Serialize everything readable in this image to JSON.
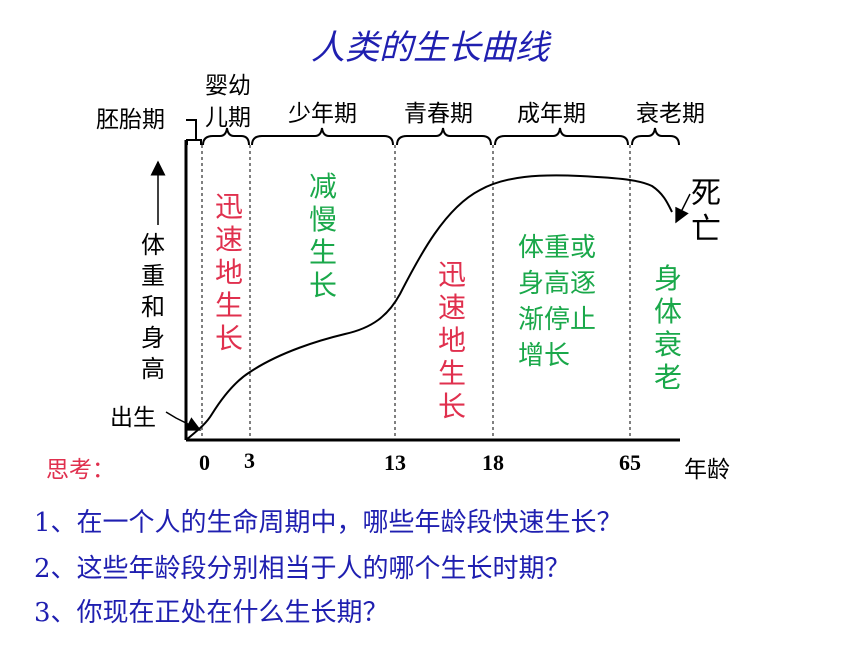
{
  "title": "人类的生长曲线",
  "stages": {
    "embryo": "胚胎期",
    "infant_line1": "婴幼",
    "infant_line2": "儿期",
    "youth": "少年期",
    "adolescence": "青春期",
    "adult": "成年期",
    "elderly": "衰老期"
  },
  "y_axis_label": "体重和身高",
  "x_axis_label": "年龄",
  "birth": "出生",
  "death": "死亡",
  "x_ticks": [
    "0",
    "3",
    "13",
    "18",
    "65"
  ],
  "phases": {
    "rapid1": "迅速地生长",
    "slow": "减慢生长",
    "rapid2": "迅速地生长",
    "stop_line1": "体重或",
    "stop_line2": "身高逐",
    "stop_line3": "渐停止",
    "stop_line4": "增长",
    "decline": "身体衰老"
  },
  "think_label": "思考：",
  "questions": [
    "1、在一个人的生命周期中，哪些年龄段快速生长？",
    "2、这些年龄段分别相当于人的哪个生长时期？",
    "3、你现在正处在什么生长期？"
  ],
  "colors": {
    "title": "#1f1fb0",
    "rapid": "#e0304e",
    "slow": "#1aa84a",
    "question": "#1f1fb0"
  }
}
